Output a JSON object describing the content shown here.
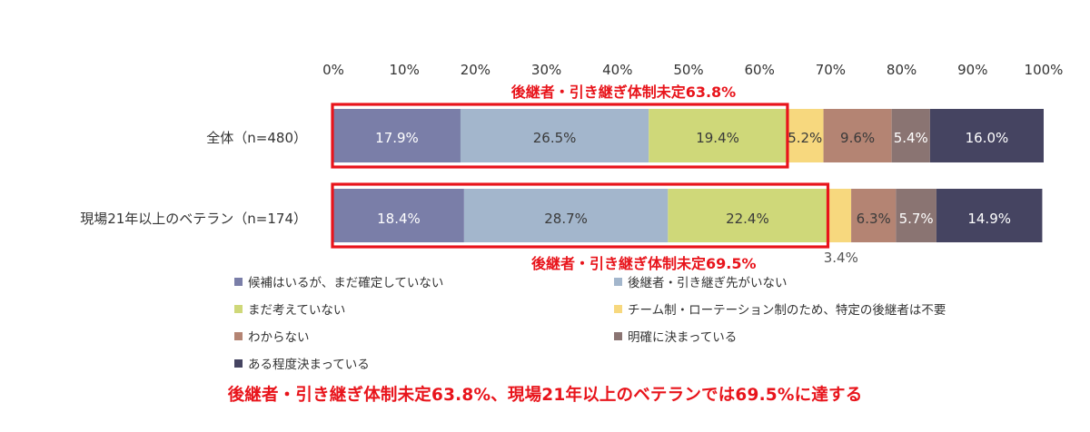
{
  "chart_data": {
    "type": "bar",
    "orientation": "horizontal",
    "stacked": true,
    "xlim": [
      0,
      100
    ],
    "x_tick_labels": [
      "0%",
      "10%",
      "20%",
      "30%",
      "40%",
      "50%",
      "60%",
      "70%",
      "80%",
      "90%",
      "100%"
    ],
    "categories": [
      "全体（n=480）",
      "現場21年以上のベテラン（n=174）"
    ],
    "series": [
      {
        "name": "候補はいるが、まだ確定していない",
        "color": "#7a7ea8",
        "values": [
          17.9,
          18.4
        ],
        "labels": [
          "17.9%",
          "18.4%"
        ]
      },
      {
        "name": "後継者・引き継ぎ先がいない",
        "color": "#a3b6cc",
        "values": [
          26.5,
          28.7
        ],
        "labels": [
          "26.5%",
          "28.7%"
        ]
      },
      {
        "name": "まだ考えていない",
        "color": "#cfd879",
        "values": [
          19.4,
          22.4
        ],
        "labels": [
          "19.4%",
          "22.4%"
        ]
      },
      {
        "name": "チーム制・ローテーション制のため、特定の後継者は不要",
        "color": "#f7d87e",
        "values": [
          5.2,
          3.4
        ],
        "labels": [
          "5.2%",
          "3.4%"
        ]
      },
      {
        "name": "わからない",
        "color": "#b48473",
        "values": [
          9.6,
          6.3
        ],
        "labels": [
          "9.6%",
          "6.3%"
        ]
      },
      {
        "name": "明確に決まっている",
        "color": "#8a7472",
        "values": [
          5.4,
          5.7
        ],
        "labels": [
          "5.4%",
          "5.7%"
        ]
      },
      {
        "name": "ある程度決まっている",
        "color": "#454461",
        "values": [
          16.0,
          14.9
        ],
        "labels": [
          "16.0%",
          "14.9%"
        ]
      }
    ],
    "highlights": [
      {
        "label": "後継者・引き継ぎ体制未定63.8%",
        "value": 63.8
      },
      {
        "label": "後継者・引き継ぎ体制未定69.5%",
        "value": 69.5
      }
    ],
    "grid": false,
    "legend_position": "bottom"
  },
  "caption": "後継者・引き継ぎ体制未定63.8%、現場21年以上のベテランでは69.5%に達する",
  "colors": {
    "highlight": "#e8141b",
    "label_text": "#3a3a3a"
  }
}
